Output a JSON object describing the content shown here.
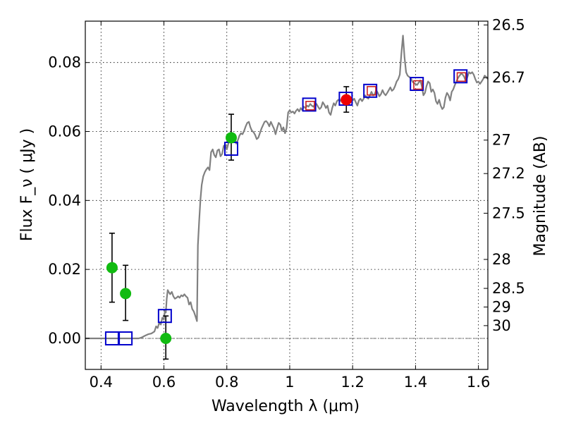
{
  "chart_data": {
    "type": "scatter",
    "xlabel": "Wavelength  λ (μm)",
    "ylabel_left": "Flux  F_ν  ( μJy )",
    "ylabel_right": "Magnitude (AB)",
    "xlim": [
      0.35,
      1.63
    ],
    "ylim": [
      -0.009,
      0.092
    ],
    "grid": true,
    "x_ticks": [
      {
        "value": 0.4,
        "label": "0.4"
      },
      {
        "value": 0.6,
        "label": "0.6"
      },
      {
        "value": 0.8,
        "label": "0.8"
      },
      {
        "value": 1.0,
        "label": "1"
      },
      {
        "value": 1.2,
        "label": "1.2"
      },
      {
        "value": 1.4,
        "label": "1.4"
      },
      {
        "value": 1.6,
        "label": "1.6"
      }
    ],
    "y_ticks": [
      {
        "value": 0.0,
        "label": "0.00"
      },
      {
        "value": 0.02,
        "label": "0.02"
      },
      {
        "value": 0.04,
        "label": "0.04"
      },
      {
        "value": 0.06,
        "label": "0.06"
      },
      {
        "value": 0.08,
        "label": "0.08"
      }
    ],
    "mag_ticks": [
      {
        "flux": 0.0909,
        "label": "26.5"
      },
      {
        "flux": 0.0756,
        "label": "26.7"
      },
      {
        "flux": 0.0575,
        "label": "27"
      },
      {
        "flux": 0.0478,
        "label": "27.2"
      },
      {
        "flux": 0.0363,
        "label": "27.5"
      },
      {
        "flux": 0.0229,
        "label": "28"
      },
      {
        "flux": 0.0145,
        "label": "28.5"
      },
      {
        "flux": 0.0091,
        "label": "29"
      },
      {
        "flux": 0.0037,
        "label": "30"
      }
    ],
    "zero_line": 0.0,
    "series": [
      {
        "name": "model spectrum",
        "kind": "line",
        "color": "#808080",
        "points": [
          [
            0.35,
            0.0
          ],
          [
            0.52,
            0.0
          ],
          [
            0.53,
            0.0003
          ],
          [
            0.54,
            0.0008
          ],
          [
            0.55,
            0.0012
          ],
          [
            0.56,
            0.0014
          ],
          [
            0.57,
            0.002
          ],
          [
            0.575,
            0.0035
          ],
          [
            0.58,
            0.003
          ],
          [
            0.585,
            0.0045
          ],
          [
            0.59,
            0.004
          ],
          [
            0.595,
            0.006
          ],
          [
            0.6,
            0.0055
          ],
          [
            0.603,
            0.008
          ],
          [
            0.606,
            0.0075
          ],
          [
            0.609,
            0.0115
          ],
          [
            0.612,
            0.014
          ],
          [
            0.616,
            0.0133
          ],
          [
            0.62,
            0.0128
          ],
          [
            0.625,
            0.0135
          ],
          [
            0.63,
            0.0122
          ],
          [
            0.635,
            0.0115
          ],
          [
            0.64,
            0.0118
          ],
          [
            0.645,
            0.0122
          ],
          [
            0.65,
            0.0118
          ],
          [
            0.655,
            0.0125
          ],
          [
            0.66,
            0.0122
          ],
          [
            0.665,
            0.0128
          ],
          [
            0.67,
            0.0122
          ],
          [
            0.675,
            0.0118
          ],
          [
            0.68,
            0.0098
          ],
          [
            0.685,
            0.0105
          ],
          [
            0.69,
            0.0085
          ],
          [
            0.695,
            0.0078
          ],
          [
            0.7,
            0.0065
          ],
          [
            0.705,
            0.005
          ],
          [
            0.708,
            0.027
          ],
          [
            0.712,
            0.034
          ],
          [
            0.716,
            0.0402
          ],
          [
            0.72,
            0.0445
          ],
          [
            0.725,
            0.047
          ],
          [
            0.73,
            0.0482
          ],
          [
            0.735,
            0.049
          ],
          [
            0.74,
            0.0496
          ],
          [
            0.745,
            0.0488
          ],
          [
            0.75,
            0.054
          ],
          [
            0.755,
            0.0548
          ],
          [
            0.76,
            0.0532
          ],
          [
            0.765,
            0.0525
          ],
          [
            0.77,
            0.0545
          ],
          [
            0.775,
            0.0548
          ],
          [
            0.78,
            0.0528
          ],
          [
            0.785,
            0.0535
          ],
          [
            0.79,
            0.0558
          ],
          [
            0.795,
            0.0562
          ],
          [
            0.8,
            0.0548
          ],
          [
            0.805,
            0.0565
          ],
          [
            0.81,
            0.0575
          ],
          [
            0.815,
            0.058
          ],
          [
            0.82,
            0.0588
          ],
          [
            0.825,
            0.0578
          ],
          [
            0.83,
            0.0565
          ],
          [
            0.835,
            0.0575
          ],
          [
            0.84,
            0.0588
          ],
          [
            0.845,
            0.0595
          ],
          [
            0.85,
            0.0592
          ],
          [
            0.855,
            0.0602
          ],
          [
            0.86,
            0.0615
          ],
          [
            0.865,
            0.0625
          ],
          [
            0.87,
            0.0628
          ],
          [
            0.875,
            0.0612
          ],
          [
            0.88,
            0.0602
          ],
          [
            0.885,
            0.0598
          ],
          [
            0.89,
            0.059
          ],
          [
            0.895,
            0.0578
          ],
          [
            0.9,
            0.0582
          ],
          [
            0.905,
            0.0595
          ],
          [
            0.91,
            0.0608
          ],
          [
            0.915,
            0.0618
          ],
          [
            0.92,
            0.0628
          ],
          [
            0.925,
            0.063
          ],
          [
            0.93,
            0.0625
          ],
          [
            0.935,
            0.0615
          ],
          [
            0.94,
            0.0628
          ],
          [
            0.945,
            0.0618
          ],
          [
            0.95,
            0.0608
          ],
          [
            0.955,
            0.0592
          ],
          [
            0.96,
            0.061
          ],
          [
            0.965,
            0.0625
          ],
          [
            0.97,
            0.062
          ],
          [
            0.975,
            0.0602
          ],
          [
            0.98,
            0.0612
          ],
          [
            0.985,
            0.0595
          ],
          [
            0.99,
            0.061
          ],
          [
            0.995,
            0.0655
          ],
          [
            1.0,
            0.0662
          ],
          [
            1.005,
            0.0655
          ],
          [
            1.01,
            0.0658
          ],
          [
            1.015,
            0.0652
          ],
          [
            1.02,
            0.066
          ],
          [
            1.025,
            0.0665
          ],
          [
            1.03,
            0.0658
          ],
          [
            1.035,
            0.0668
          ],
          [
            1.04,
            0.0662
          ],
          [
            1.045,
            0.0672
          ],
          [
            1.05,
            0.0668
          ],
          [
            1.055,
            0.0675
          ],
          [
            1.06,
            0.0672
          ],
          [
            1.065,
            0.068
          ],
          [
            1.07,
            0.0675
          ],
          [
            1.075,
            0.0672
          ],
          [
            1.08,
            0.0678
          ],
          [
            1.085,
            0.068
          ],
          [
            1.09,
            0.0672
          ],
          [
            1.095,
            0.0665
          ],
          [
            1.1,
            0.067
          ],
          [
            1.105,
            0.0685
          ],
          [
            1.11,
            0.0678
          ],
          [
            1.115,
            0.0668
          ],
          [
            1.12,
            0.0675
          ],
          [
            1.125,
            0.0655
          ],
          [
            1.13,
            0.0648
          ],
          [
            1.135,
            0.0668
          ],
          [
            1.14,
            0.0682
          ],
          [
            1.145,
            0.0675
          ],
          [
            1.15,
            0.0688
          ],
          [
            1.155,
            0.0692
          ],
          [
            1.16,
            0.0688
          ],
          [
            1.165,
            0.0695
          ],
          [
            1.17,
            0.0698
          ],
          [
            1.175,
            0.0692
          ],
          [
            1.18,
            0.0685
          ],
          [
            1.185,
            0.07
          ],
          [
            1.19,
            0.0702
          ],
          [
            1.195,
            0.0692
          ],
          [
            1.2,
            0.069
          ],
          [
            1.205,
            0.0695
          ],
          [
            1.21,
            0.0685
          ],
          [
            1.215,
            0.0675
          ],
          [
            1.22,
            0.069
          ],
          [
            1.225,
            0.0695
          ],
          [
            1.23,
            0.0688
          ],
          [
            1.235,
            0.0695
          ],
          [
            1.24,
            0.0705
          ],
          [
            1.245,
            0.0698
          ],
          [
            1.25,
            0.0695
          ],
          [
            1.255,
            0.0705
          ],
          [
            1.26,
            0.0715
          ],
          [
            1.265,
            0.0705
          ],
          [
            1.27,
            0.0708
          ],
          [
            1.275,
            0.072
          ],
          [
            1.28,
            0.0712
          ],
          [
            1.285,
            0.0702
          ],
          [
            1.29,
            0.0708
          ],
          [
            1.295,
            0.072
          ],
          [
            1.3,
            0.071
          ],
          [
            1.305,
            0.0705
          ],
          [
            1.31,
            0.0712
          ],
          [
            1.315,
            0.072
          ],
          [
            1.32,
            0.0728
          ],
          [
            1.325,
            0.0718
          ],
          [
            1.33,
            0.0722
          ],
          [
            1.335,
            0.0732
          ],
          [
            1.34,
            0.0745
          ],
          [
            1.345,
            0.0752
          ],
          [
            1.35,
            0.0765
          ],
          [
            1.355,
            0.0825
          ],
          [
            1.36,
            0.0878
          ],
          [
            1.365,
            0.0815
          ],
          [
            1.37,
            0.0772
          ],
          [
            1.375,
            0.0762
          ],
          [
            1.38,
            0.0758
          ],
          [
            1.385,
            0.0755
          ],
          [
            1.39,
            0.0745
          ],
          [
            1.395,
            0.074
          ],
          [
            1.4,
            0.0738
          ],
          [
            1.405,
            0.0735
          ],
          [
            1.41,
            0.0742
          ],
          [
            1.415,
            0.0748
          ],
          [
            1.42,
            0.0732
          ],
          [
            1.425,
            0.0705
          ],
          [
            1.43,
            0.0712
          ],
          [
            1.435,
            0.0732
          ],
          [
            1.44,
            0.0745
          ],
          [
            1.445,
            0.074
          ],
          [
            1.45,
            0.0715
          ],
          [
            1.455,
            0.0722
          ],
          [
            1.46,
            0.0712
          ],
          [
            1.465,
            0.0688
          ],
          [
            1.47,
            0.068
          ],
          [
            1.475,
            0.0692
          ],
          [
            1.48,
            0.0675
          ],
          [
            1.485,
            0.0665
          ],
          [
            1.49,
            0.067
          ],
          [
            1.495,
            0.0698
          ],
          [
            1.5,
            0.0712
          ],
          [
            1.505,
            0.0705
          ],
          [
            1.51,
            0.069
          ],
          [
            1.515,
            0.0715
          ],
          [
            1.52,
            0.0722
          ],
          [
            1.525,
            0.0735
          ],
          [
            1.53,
            0.0745
          ],
          [
            1.535,
            0.0755
          ],
          [
            1.54,
            0.0762
          ],
          [
            1.545,
            0.0768
          ],
          [
            1.55,
            0.0765
          ],
          [
            1.555,
            0.0758
          ],
          [
            1.56,
            0.0745
          ],
          [
            1.565,
            0.0758
          ],
          [
            1.57,
            0.0772
          ],
          [
            1.575,
            0.0768
          ],
          [
            1.58,
            0.0772
          ],
          [
            1.585,
            0.0765
          ],
          [
            1.59,
            0.0752
          ],
          [
            1.595,
            0.0742
          ],
          [
            1.6,
            0.0745
          ],
          [
            1.605,
            0.0738
          ],
          [
            1.61,
            0.0745
          ],
          [
            1.615,
            0.0752
          ],
          [
            1.62,
            0.0762
          ],
          [
            1.625,
            0.0758
          ],
          [
            1.63,
            0.0752
          ]
        ]
      },
      {
        "name": "model photometry",
        "kind": "open-square",
        "color": "#0000cc",
        "x": [
          0.435,
          0.478,
          0.603,
          0.814,
          1.062,
          1.178,
          1.256,
          1.404,
          1.543
        ],
        "y": [
          0.0,
          0.0,
          0.0065,
          0.055,
          0.0678,
          0.0695,
          0.0718,
          0.0738,
          0.076
        ]
      },
      {
        "name": "inner model photometry",
        "kind": "open-square-small",
        "color": "#cc2222",
        "x": [
          1.065,
          1.26,
          1.408,
          1.546
        ],
        "y": [
          0.0675,
          0.0718,
          0.0735,
          0.0758
        ]
      },
      {
        "name": "observed detections",
        "kind": "filled-circle",
        "color": "#11bb11",
        "x": [
          0.435,
          0.478,
          0.606,
          0.814
        ],
        "y": [
          0.0205,
          0.013,
          0.0,
          0.0582
        ],
        "yerr_low": [
          0.01,
          0.0078,
          0.006,
          0.0065
        ],
        "yerr_high": [
          0.01,
          0.0082,
          0.0065,
          0.0068
        ]
      },
      {
        "name": "observed J-band",
        "kind": "filled-circle",
        "color": "#ee0000",
        "x": [
          1.18
        ],
        "y": [
          0.0692
        ],
        "yerr_low": [
          0.0036
        ],
        "yerr_high": [
          0.0038
        ]
      }
    ]
  }
}
